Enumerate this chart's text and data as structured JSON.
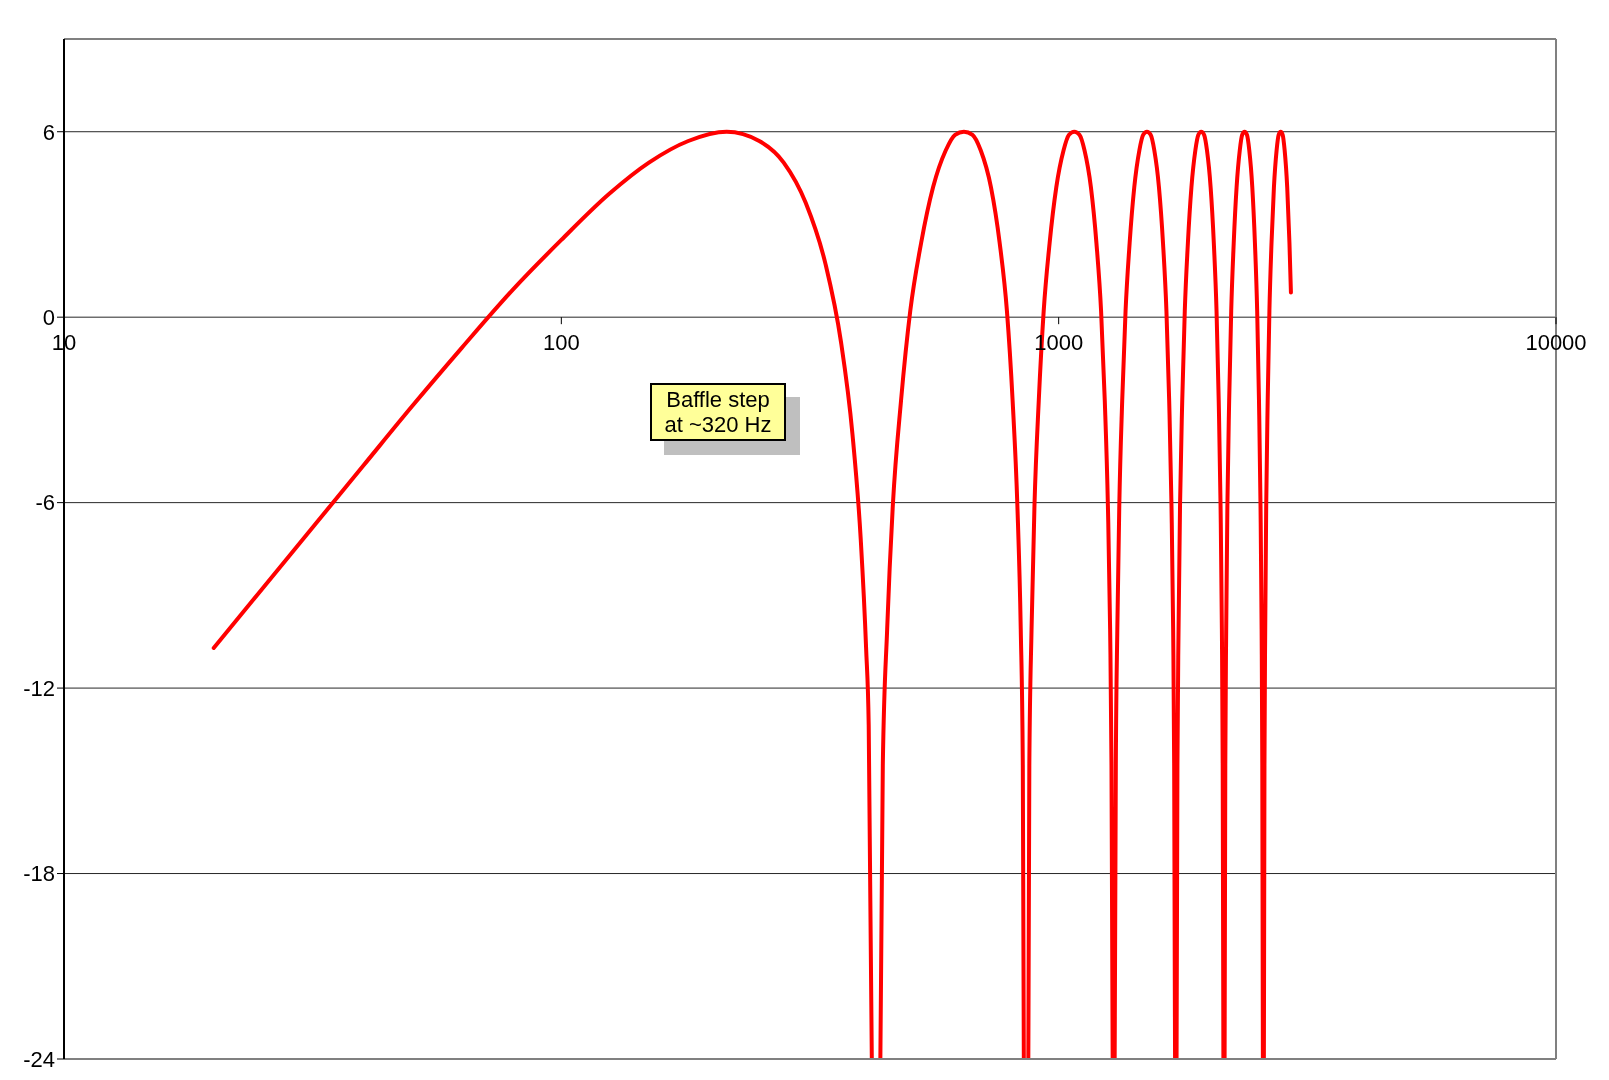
{
  "chart_data": {
    "type": "line",
    "color": "#ff0000",
    "x": [
      20,
      25,
      32,
      40,
      50,
      63,
      80,
      100,
      125,
      150,
      180,
      215,
      250,
      280,
      310,
      340,
      365,
      385,
      400,
      410,
      415,
      421,
      430,
      438,
      443,
      452,
      464,
      482,
      503,
      529,
      559,
      593,
      619,
      645,
      671,
      697,
      731,
      761,
      787,
      808,
      826,
      839,
      847,
      851,
      860,
      869,
      873,
      882,
      894,
      912,
      933,
      959,
      989,
      1023,
      1049,
      1075,
      1101,
      1127,
      1161,
      1191,
      1217,
      1238,
      1256,
      1269,
      1277,
      1284,
      1290,
      1296,
      1303,
      1312,
      1324,
      1342,
      1363,
      1389,
      1419,
      1453,
      1479,
      1505,
      1531,
      1557,
      1591,
      1621,
      1647,
      1668,
      1686,
      1699,
      1707,
      1714,
      1720,
      1726,
      1733,
      1742,
      1754,
      1772,
      1793,
      1819,
      1849,
      1883,
      1909,
      1935,
      1961,
      1987,
      2021,
      2051,
      2077,
      2098,
      2116,
      2129,
      2137,
      2144,
      2150,
      2156,
      2163,
      2172,
      2184,
      2202,
      2223,
      2249,
      2279,
      2313,
      2339,
      2365,
      2391,
      2417,
      2451,
      2481,
      2507,
      2528,
      2546,
      2559,
      2567,
      2574,
      2580,
      2586,
      2593,
      2602,
      2614,
      2632,
      2653,
      2679,
      2709,
      2743,
      2769,
      2795,
      2821,
      2847,
      2881,
      2911,
      2931
    ],
    "values": [
      -10.7,
      -8.8,
      -6.7,
      -4.8,
      -2.9,
      -1.0,
      0.9,
      2.5,
      4.0,
      5.0,
      5.7,
      6.0,
      5.7,
      5.0,
      3.7,
      1.7,
      -0.8,
      -3.8,
      -7.2,
      -10.7,
      -13.2,
      -24,
      null,
      -24,
      -14.5,
      -10.1,
      -6.1,
      -2.7,
      0.2,
      2.4,
      4.2,
      5.4,
      5.9,
      6.0,
      5.9,
      5.4,
      4.2,
      2.4,
      0.2,
      -2.7,
      -6.1,
      -10.1,
      -14.5,
      -24,
      null,
      -24,
      -14.5,
      -10.1,
      -6.1,
      -2.7,
      0.2,
      2.4,
      4.2,
      5.4,
      5.9,
      6.0,
      5.9,
      5.4,
      4.2,
      2.4,
      0.2,
      -2.7,
      -6.1,
      -10.1,
      -14.5,
      -24,
      null,
      -24,
      -14.5,
      -10.1,
      -6.1,
      -2.7,
      0.2,
      2.4,
      4.2,
      5.4,
      5.9,
      6.0,
      5.9,
      5.4,
      4.2,
      2.4,
      0.2,
      -2.7,
      -6.1,
      -10.1,
      -14.5,
      -24,
      null,
      -24,
      -14.5,
      -10.1,
      -6.1,
      -2.7,
      0.2,
      2.4,
      4.2,
      5.4,
      5.9,
      6.0,
      5.9,
      5.4,
      4.2,
      2.4,
      0.2,
      -2.7,
      -6.1,
      -10.1,
      -14.5,
      -24,
      null,
      -24,
      -14.5,
      -10.1,
      -6.1,
      -2.7,
      0.2,
      2.4,
      4.2,
      5.4,
      5.9,
      6.0,
      5.9,
      5.4,
      4.2,
      2.4,
      0.2,
      -2.7,
      -6.1,
      -10.1,
      -14.5,
      -24,
      null,
      -24,
      -14.5,
      -10.1,
      -6.1,
      -2.7,
      0.2,
      2.4,
      4.2,
      5.4,
      5.9,
      6.0,
      5.9,
      5.4,
      4.2,
      2.4,
      0.8
    ],
    "xlim": [
      10,
      10000
    ],
    "xticks": [
      10,
      100,
      1000,
      10000
    ],
    "ylim": [
      -24,
      9
    ],
    "yticks": [
      -24,
      -18,
      -12,
      -6,
      0,
      6
    ],
    "log": "x",
    "grid": "y",
    "marker": "none",
    "line_style": "solid",
    "annotations": [
      "Baffle step at ~320 Hz"
    ]
  }
}
